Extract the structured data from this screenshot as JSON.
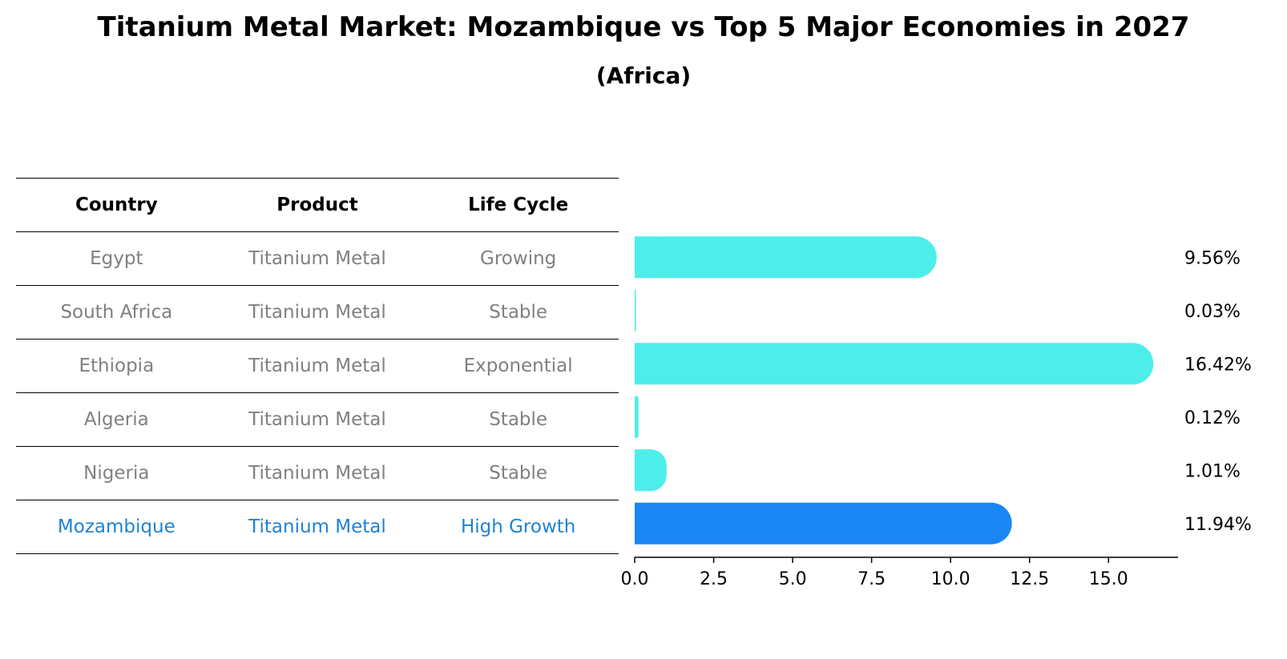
{
  "title": "Titanium Metal Market: Mozambique vs Top 5 Major Economies in 2027",
  "subtitle": "(Africa)",
  "table": {
    "headers": [
      "Country",
      "Product",
      "Life Cycle"
    ],
    "rows": [
      {
        "country": "Egypt",
        "product": "Titanium Metal",
        "life_cycle": "Growing"
      },
      {
        "country": "South Africa",
        "product": "Titanium Metal",
        "life_cycle": "Stable"
      },
      {
        "country": "Ethiopia",
        "product": "Titanium Metal",
        "life_cycle": "Exponential"
      },
      {
        "country": "Algeria",
        "product": "Titanium Metal",
        "life_cycle": "Stable"
      },
      {
        "country": "Nigeria",
        "product": "Titanium Metal",
        "life_cycle": "Stable"
      },
      {
        "country": "Mozambique",
        "product": "Titanium Metal",
        "life_cycle": "High Growth"
      }
    ]
  },
  "colors": {
    "bar": "#4deeea",
    "highlight_bar": "#1a86f4",
    "highlight_text": "#1f82d6",
    "muted_text": "#808080"
  },
  "chart_data": {
    "type": "bar",
    "orientation": "horizontal",
    "categories": [
      "Egypt",
      "South Africa",
      "Ethiopia",
      "Algeria",
      "Nigeria",
      "Mozambique"
    ],
    "values": [
      9.56,
      0.03,
      16.42,
      0.12,
      1.01,
      11.94
    ],
    "value_labels": [
      "9.56%",
      "0.03%",
      "16.42%",
      "0.12%",
      "1.01%",
      "11.94%"
    ],
    "highlight": "Mozambique",
    "xlim": [
      0,
      17.2
    ],
    "xticks": [
      0.0,
      2.5,
      5.0,
      7.5,
      10.0,
      12.5,
      15.0
    ],
    "xtick_labels": [
      "0.0",
      "2.5",
      "5.0",
      "7.5",
      "10.0",
      "12.5",
      "15.0"
    ]
  }
}
